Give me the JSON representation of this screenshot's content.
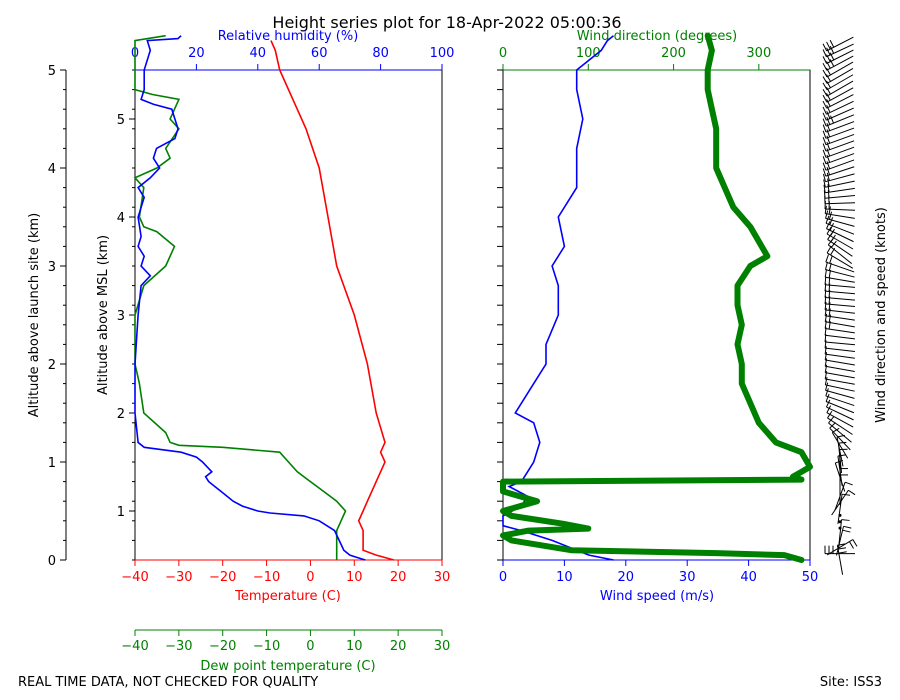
{
  "title": "Height series plot for 18-Apr-2022 05:00:36",
  "footer_left": "REAL TIME DATA, NOT CHECKED FOR QUALITY",
  "footer_right": "Site: ISS3",
  "colors": {
    "temperature": "#ff0000",
    "dewpoint": "#008000",
    "humidity": "#0000ff",
    "wind_speed": "#0000ff",
    "wind_direction": "#008000",
    "barbs": "#000000"
  },
  "chart_data": [
    {
      "type": "line",
      "panel": "thermodynamics",
      "axes": {
        "left_outer": {
          "label": "Altitude above launch site (km)",
          "range": [
            0,
            5
          ],
          "ticks": [
            "0",
            "1",
            "2",
            "3",
            "4",
            "5"
          ]
        },
        "left_inner": {
          "label": "Altitude above MSL (km)",
          "ticks": [
            "1",
            "2",
            "3",
            "4",
            "5"
          ],
          "offset_km": 0.5
        },
        "bottom": {
          "label": "Temperature (C)",
          "range": [
            -40,
            30
          ],
          "ticks": [
            "−40",
            "−30",
            "−20",
            "−10",
            "0",
            "10",
            "20",
            "30"
          ]
        },
        "bottom2": {
          "label": "Dew point temperature (C)",
          "range": [
            -40,
            30
          ],
          "ticks": [
            "−40",
            "−30",
            "−20",
            "−10",
            "0",
            "10",
            "20",
            "30"
          ]
        },
        "top": {
          "label": "Relative humidity (%)",
          "range": [
            0,
            100
          ],
          "ticks": [
            "0",
            "20",
            "40",
            "60",
            "80",
            "100"
          ]
        }
      },
      "series": [
        {
          "name": "Temperature",
          "x_units": "C",
          "points": [
            [
              19,
              0
            ],
            [
              15,
              0.05
            ],
            [
              12,
              0.1
            ],
            [
              12,
              0.3
            ],
            [
              11,
              0.4
            ],
            [
              12,
              0.5
            ],
            [
              13,
              0.6
            ],
            [
              15,
              0.8
            ],
            [
              16,
              0.9
            ],
            [
              17,
              1.0
            ],
            [
              16,
              1.1
            ],
            [
              17,
              1.2
            ],
            [
              15,
              1.5
            ],
            [
              13,
              2.0
            ],
            [
              10,
              2.5
            ],
            [
              6,
              3.0
            ],
            [
              4,
              3.5
            ],
            [
              2,
              4.0
            ],
            [
              -1,
              4.4
            ],
            [
              -4,
              4.7
            ],
            [
              -7,
              5.0
            ],
            [
              -8,
              5.2
            ],
            [
              -9,
              5.3
            ]
          ]
        },
        {
          "name": "Dew point",
          "x_units": "C",
          "points": [
            [
              6,
              0
            ],
            [
              6,
              0.2
            ],
            [
              6,
              0.3
            ],
            [
              7,
              0.4
            ],
            [
              8,
              0.5
            ],
            [
              6,
              0.6
            ],
            [
              3,
              0.7
            ],
            [
              0,
              0.8
            ],
            [
              -3,
              0.9
            ],
            [
              -5,
              1.0
            ],
            [
              -7,
              1.1
            ],
            [
              -20,
              1.15
            ],
            [
              -30,
              1.17
            ],
            [
              -32,
              1.2
            ],
            [
              -33,
              1.3
            ],
            [
              -38,
              1.5
            ],
            [
              -39,
              1.8
            ],
            [
              -40,
              2.0
            ],
            [
              -40,
              2.5
            ],
            [
              -38,
              2.8
            ],
            [
              -33,
              3.0
            ],
            [
              -31,
              3.2
            ],
            [
              -35,
              3.35
            ],
            [
              -38,
              3.4
            ],
            [
              -39,
              3.5
            ],
            [
              -38,
              3.8
            ],
            [
              -40,
              3.9
            ],
            [
              -35,
              4.0
            ],
            [
              -32,
              4.1
            ],
            [
              -33,
              4.2
            ],
            [
              -30,
              4.4
            ],
            [
              -32,
              4.5
            ],
            [
              -31,
              4.6
            ],
            [
              -30,
              4.7
            ],
            [
              -36,
              4.75
            ],
            [
              -40,
              4.8
            ],
            [
              -40,
              5.0
            ],
            [
              -40,
              5.3
            ],
            [
              -33,
              5.35
            ]
          ]
        },
        {
          "name": "Relative humidity",
          "x_units": "%",
          "points": [
            [
              75,
              0
            ],
            [
              72,
              0.03
            ],
            [
              70,
              0.05
            ],
            [
              68,
              0.1
            ],
            [
              65,
              0.3
            ],
            [
              60,
              0.4
            ],
            [
              55,
              0.45
            ],
            [
              44,
              0.48
            ],
            [
              40,
              0.5
            ],
            [
              35,
              0.55
            ],
            [
              32,
              0.6
            ],
            [
              28,
              0.7
            ],
            [
              26,
              0.75
            ],
            [
              24,
              0.8
            ],
            [
              23,
              0.85
            ],
            [
              25,
              0.9
            ],
            [
              22,
              1.0
            ],
            [
              20,
              1.05
            ],
            [
              15,
              1.1
            ],
            [
              3,
              1.15
            ],
            [
              1,
              1.2
            ],
            [
              0,
              1.5
            ],
            [
              0,
              2.0
            ],
            [
              1,
              2.5
            ],
            [
              2,
              2.8
            ],
            [
              5,
              2.9
            ],
            [
              2,
              3.0
            ],
            [
              3,
              3.1
            ],
            [
              1,
              3.2
            ],
            [
              2,
              3.3
            ],
            [
              1,
              3.5
            ],
            [
              3,
              3.7
            ],
            [
              1,
              3.8
            ],
            [
              5,
              3.9
            ],
            [
              8,
              4.0
            ],
            [
              6,
              4.1
            ],
            [
              7,
              4.2
            ],
            [
              13,
              4.3
            ],
            [
              14,
              4.4
            ],
            [
              13,
              4.5
            ],
            [
              12,
              4.6
            ],
            [
              6,
              4.65
            ],
            [
              2,
              4.7
            ],
            [
              3,
              4.8
            ],
            [
              3,
              5.0
            ],
            [
              5,
              5.2
            ],
            [
              4,
              5.3
            ],
            [
              14,
              5.32
            ],
            [
              15,
              5.35
            ]
          ]
        }
      ]
    },
    {
      "type": "line",
      "panel": "wind",
      "axes": {
        "bottom": {
          "label": "Wind speed (m/s)",
          "range": [
            0,
            50
          ],
          "ticks": [
            "0",
            "10",
            "20",
            "30",
            "40",
            "50"
          ]
        },
        "top": {
          "label": "Wind direction (degrees)",
          "range": [
            0,
            360
          ],
          "ticks": [
            "0",
            "100",
            "200",
            "300"
          ]
        },
        "right": {
          "label": "Wind direction and speed (knots)"
        }
      },
      "series": [
        {
          "name": "Wind speed",
          "x_units": "m/s",
          "points": [
            [
              18,
              0
            ],
            [
              14,
              0.05
            ],
            [
              12,
              0.1
            ],
            [
              8,
              0.2
            ],
            [
              3,
              0.3
            ],
            [
              0,
              0.35
            ],
            [
              0,
              0.45
            ],
            [
              3,
              0.55
            ],
            [
              4,
              0.65
            ],
            [
              1,
              0.75
            ],
            [
              3,
              0.8
            ],
            [
              4,
              0.9
            ],
            [
              5,
              1.0
            ],
            [
              6,
              1.2
            ],
            [
              5,
              1.4
            ],
            [
              2,
              1.5
            ],
            [
              5,
              1.8
            ],
            [
              7,
              2.0
            ],
            [
              7,
              2.2
            ],
            [
              9,
              2.5
            ],
            [
              9,
              2.8
            ],
            [
              8,
              3.0
            ],
            [
              10,
              3.2
            ],
            [
              9,
              3.5
            ],
            [
              12,
              3.8
            ],
            [
              12,
              4.0
            ],
            [
              12,
              4.2
            ],
            [
              13,
              4.5
            ],
            [
              12,
              4.8
            ],
            [
              12,
              5.0
            ],
            [
              16,
              5.2
            ],
            [
              17,
              5.3
            ],
            [
              18,
              5.35
            ]
          ]
        },
        {
          "name": "Wind direction",
          "x_units": "degrees",
          "points": [
            [
              350,
              0
            ],
            [
              330,
              0.05
            ],
            [
              250,
              0.07
            ],
            [
              80,
              0.1
            ],
            [
              10,
              0.2
            ],
            [
              0,
              0.25
            ],
            [
              30,
              0.3
            ],
            [
              100,
              0.32
            ],
            [
              70,
              0.37
            ],
            [
              10,
              0.45
            ],
            [
              0,
              0.5
            ],
            [
              40,
              0.6
            ],
            [
              0,
              0.7
            ],
            [
              0,
              0.8
            ],
            [
              350,
              0.82
            ],
            [
              340,
              0.85
            ],
            [
              350,
              0.9
            ],
            [
              360,
              0.95
            ],
            [
              350,
              1.1
            ],
            [
              320,
              1.2
            ],
            [
              300,
              1.4
            ],
            [
              290,
              1.6
            ],
            [
              280,
              1.8
            ],
            [
              280,
              2.0
            ],
            [
              275,
              2.2
            ],
            [
              280,
              2.4
            ],
            [
              275,
              2.6
            ],
            [
              275,
              2.8
            ],
            [
              290,
              3.0
            ],
            [
              310,
              3.1
            ],
            [
              290,
              3.4
            ],
            [
              270,
              3.6
            ],
            [
              260,
              3.8
            ],
            [
              250,
              4.0
            ],
            [
              250,
              4.2
            ],
            [
              250,
              4.4
            ],
            [
              245,
              4.6
            ],
            [
              240,
              4.8
            ],
            [
              240,
              5.0
            ],
            [
              245,
              5.2
            ],
            [
              240,
              5.35
            ]
          ]
        }
      ]
    }
  ]
}
